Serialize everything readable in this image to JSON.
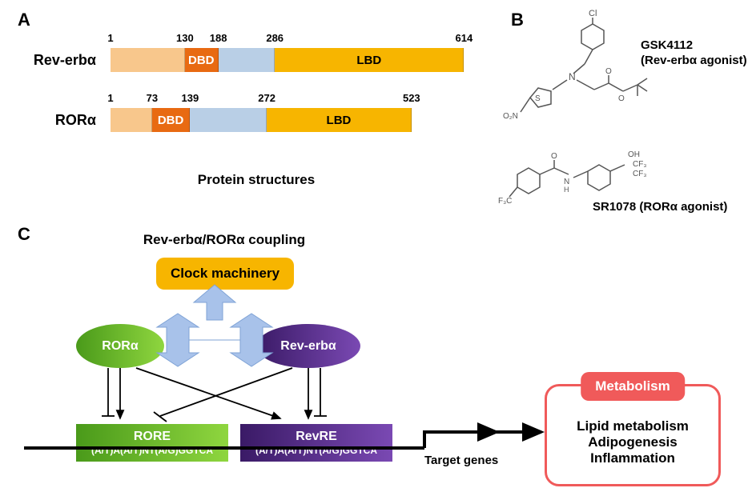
{
  "panelA": {
    "label": "A",
    "proteins": [
      {
        "name": "Rev-erbα",
        "total": 614,
        "segments": [
          {
            "start": 1,
            "end": 130,
            "color": "#f8c78c",
            "label": ""
          },
          {
            "start": 130,
            "end": 188,
            "color": "#e86a12",
            "label": "DBD"
          },
          {
            "start": 188,
            "end": 286,
            "color": "#b9cfe6",
            "label": ""
          },
          {
            "start": 286,
            "end": 614,
            "color": "#f7b500",
            "label": "LBD"
          }
        ],
        "ticks": [
          1,
          130,
          188,
          286,
          614
        ]
      },
      {
        "name": "RORα",
        "total": 523,
        "segments": [
          {
            "start": 1,
            "end": 73,
            "color": "#f8c78c",
            "label": ""
          },
          {
            "start": 73,
            "end": 139,
            "color": "#e86a12",
            "label": "DBD"
          },
          {
            "start": 139,
            "end": 272,
            "color": "#b9cfe6",
            "label": ""
          },
          {
            "start": 272,
            "end": 523,
            "color": "#f7b500",
            "label": "LBD"
          }
        ],
        "ticks": [
          1,
          73,
          139,
          272,
          523
        ]
      }
    ],
    "caption": "Protein structures",
    "pxPerAA": 0.72
  },
  "panelB": {
    "label": "B",
    "chem1": {
      "name": "GSK4112",
      "subtitle": "(Rev-erbα agonist)"
    },
    "chem2": {
      "name": "SR1078 (RORα agonist)"
    }
  },
  "panelC": {
    "label": "C",
    "heading": "Rev-erbα/RORα coupling",
    "clock": "Clock machinery",
    "ror": {
      "label": "RORα",
      "fill1": "#4a9a1a",
      "fill2": "#8fd63f"
    },
    "rev": {
      "label": "Rev-erbα",
      "fill1": "#3a1a66",
      "fill2": "#7a49b3"
    },
    "rore": {
      "title": "RORE",
      "seq": "(A/T)A(A/T)NT(A/G)GGTCA",
      "fill1": "#4a9a1a",
      "fill2": "#8fd63f"
    },
    "revre": {
      "title": "RevRE",
      "seq": "(A/T)A(A/T)NT(A/G)GGTCA",
      "fill1": "#3a1a66",
      "fill2": "#7a49b3"
    },
    "target": "Target genes",
    "metabolism": {
      "tag": "Metabolism",
      "lines": [
        "Lipid metabolism",
        "Adipogenesis",
        "Inflammation"
      ]
    },
    "arrowColor": "#a8c2ea"
  },
  "colors": {
    "black": "#000000",
    "dnaLine": "#000000"
  }
}
